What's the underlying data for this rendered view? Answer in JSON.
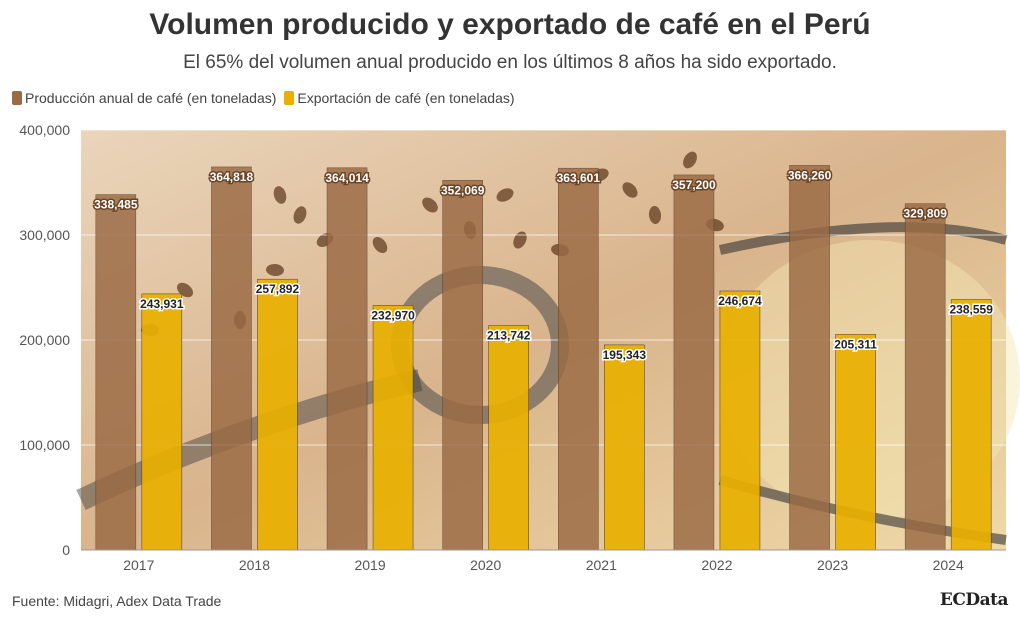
{
  "header": {
    "title": "Volumen producido y exportado de café en el Perú",
    "subtitle": "El 65% del volumen anual producido en los últimos 8 años ha sido exportado."
  },
  "footer": {
    "source": "Fuente: Midagri, Adex Data Trade",
    "brand": "ECData"
  },
  "colors": {
    "production": "#9a6a44",
    "export": "#e9b000",
    "background_warm": "#e8c9a5"
  },
  "chart_data": {
    "type": "bar",
    "categories": [
      "2017",
      "2018",
      "2019",
      "2020",
      "2021",
      "2022",
      "2023",
      "2024"
    ],
    "series": [
      {
        "name": "Producción anual de café (en toneladas)",
        "values": [
          338485,
          364818,
          364014,
          352069,
          363601,
          357200,
          366260,
          329809
        ],
        "labels": [
          "338,485",
          "364,818",
          "364,014",
          "352,069",
          "363,601",
          "357,200",
          "366,260",
          "329,809"
        ]
      },
      {
        "name": "Exportación de café (en toneladas)",
        "values": [
          243931,
          257892,
          232970,
          213742,
          195343,
          246674,
          205311,
          238559
        ],
        "labels": [
          "243,931",
          "257,892",
          "232,970",
          "213,742",
          "195,343",
          "246,674",
          "205,311",
          "238,559"
        ]
      }
    ],
    "ylim": [
      0,
      400000
    ],
    "yticks": [
      0,
      100000,
      200000,
      300000,
      400000
    ],
    "ytick_labels": [
      "0",
      "100,000",
      "200,000",
      "300,000",
      "400,000"
    ],
    "grid": true,
    "legend_position": "top-left"
  }
}
